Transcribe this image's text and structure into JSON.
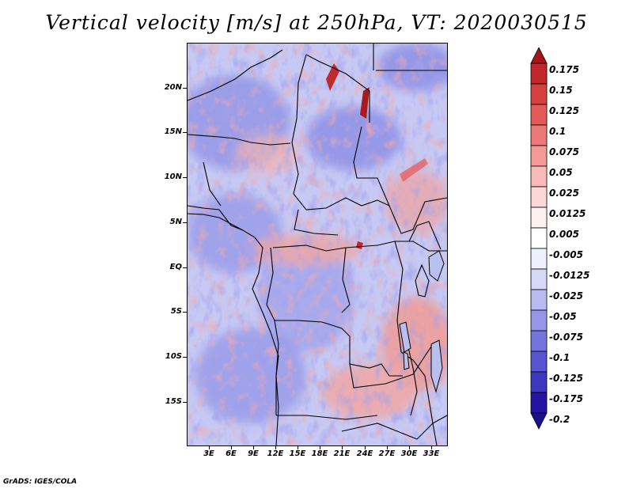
{
  "title": "Vertical velocity [m/s] at 250hPa, VT: 2020030515",
  "map": {
    "lat_labels": [
      "20N",
      "15N",
      "10N",
      "5N",
      "EQ",
      "5S",
      "10S",
      "15S"
    ],
    "lon_labels": [
      "3E",
      "6E",
      "9E",
      "12E",
      "15E",
      "18E",
      "21E",
      "24E",
      "27E",
      "30E",
      "33E"
    ]
  },
  "colorbar": {
    "levels": [
      "0.175",
      "0.15",
      "0.125",
      "0.1",
      "0.075",
      "0.05",
      "0.025",
      "0.0125",
      "0.005",
      "-0.005",
      "-0.0125",
      "-0.025",
      "-0.05",
      "-0.075",
      "-0.1",
      "-0.125",
      "-0.175",
      "-0.2"
    ],
    "colors": [
      "#a51519",
      "#c2282b",
      "#d74041",
      "#e35a59",
      "#ec7977",
      "#f39a98",
      "#f8bab8",
      "#fbd7d5",
      "#fdf0ef",
      "#ffffff",
      "#eef0fc",
      "#d6d9f7",
      "#b7bbf1",
      "#9596e9",
      "#7574df",
      "#5854d1",
      "#3d36be",
      "#2413a4",
      "#1b0f8c"
    ]
  },
  "credit": "GrADS: IGES/COLA"
}
